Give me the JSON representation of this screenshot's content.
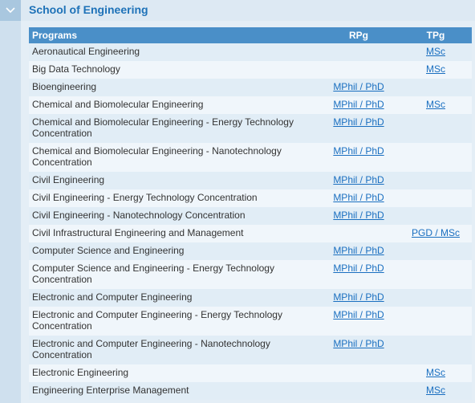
{
  "section": {
    "title": "School of Engineering",
    "toggle_icon": "chevron-down-icon"
  },
  "table": {
    "headers": {
      "programs": "Programs",
      "rpg": "RPg",
      "tpg": "TPg"
    },
    "rows": [
      {
        "program": "Aeronautical Engineering",
        "rpg": "",
        "tpg": "MSc"
      },
      {
        "program": "Big Data Technology",
        "rpg": "",
        "tpg": "MSc"
      },
      {
        "program": "Bioengineering",
        "rpg": "MPhil / PhD",
        "tpg": ""
      },
      {
        "program": "Chemical and Biomolecular Engineering",
        "rpg": "MPhil / PhD",
        "tpg": "MSc"
      },
      {
        "program": "Chemical and Biomolecular Engineering - Energy Technology Concentration",
        "rpg": "MPhil / PhD",
        "tpg": ""
      },
      {
        "program": "Chemical and Biomolecular Engineering - Nanotechnology Concentration",
        "rpg": "MPhil / PhD",
        "tpg": ""
      },
      {
        "program": "Civil Engineering",
        "rpg": "MPhil / PhD",
        "tpg": ""
      },
      {
        "program": "Civil Engineering - Energy Technology Concentration",
        "rpg": "MPhil / PhD",
        "tpg": ""
      },
      {
        "program": "Civil Engineering - Nanotechnology Concentration",
        "rpg": "MPhil / PhD",
        "tpg": ""
      },
      {
        "program": "Civil Infrastructural Engineering and Management",
        "rpg": "",
        "tpg": "PGD / MSc"
      },
      {
        "program": "Computer Science and Engineering",
        "rpg": "MPhil / PhD",
        "tpg": ""
      },
      {
        "program": "Computer Science and Engineering - Energy Technology Concentration",
        "rpg": "MPhil / PhD",
        "tpg": ""
      },
      {
        "program": "Electronic and Computer Engineering",
        "rpg": "MPhil / PhD",
        "tpg": ""
      },
      {
        "program": "Electronic and Computer Engineering - Energy Technology Concentration",
        "rpg": "MPhil / PhD",
        "tpg": ""
      },
      {
        "program": "Electronic and Computer Engineering - Nanotechnology Concentration",
        "rpg": "MPhil / PhD",
        "tpg": ""
      },
      {
        "program": "Electronic Engineering",
        "rpg": "",
        "tpg": "MSc"
      },
      {
        "program": "Engineering Enterprise Management",
        "rpg": "",
        "tpg": "MSc"
      }
    ]
  },
  "colors": {
    "accent": "#1e72b8",
    "header_bg": "#4a8fc8",
    "link": "#1a6fc0"
  }
}
